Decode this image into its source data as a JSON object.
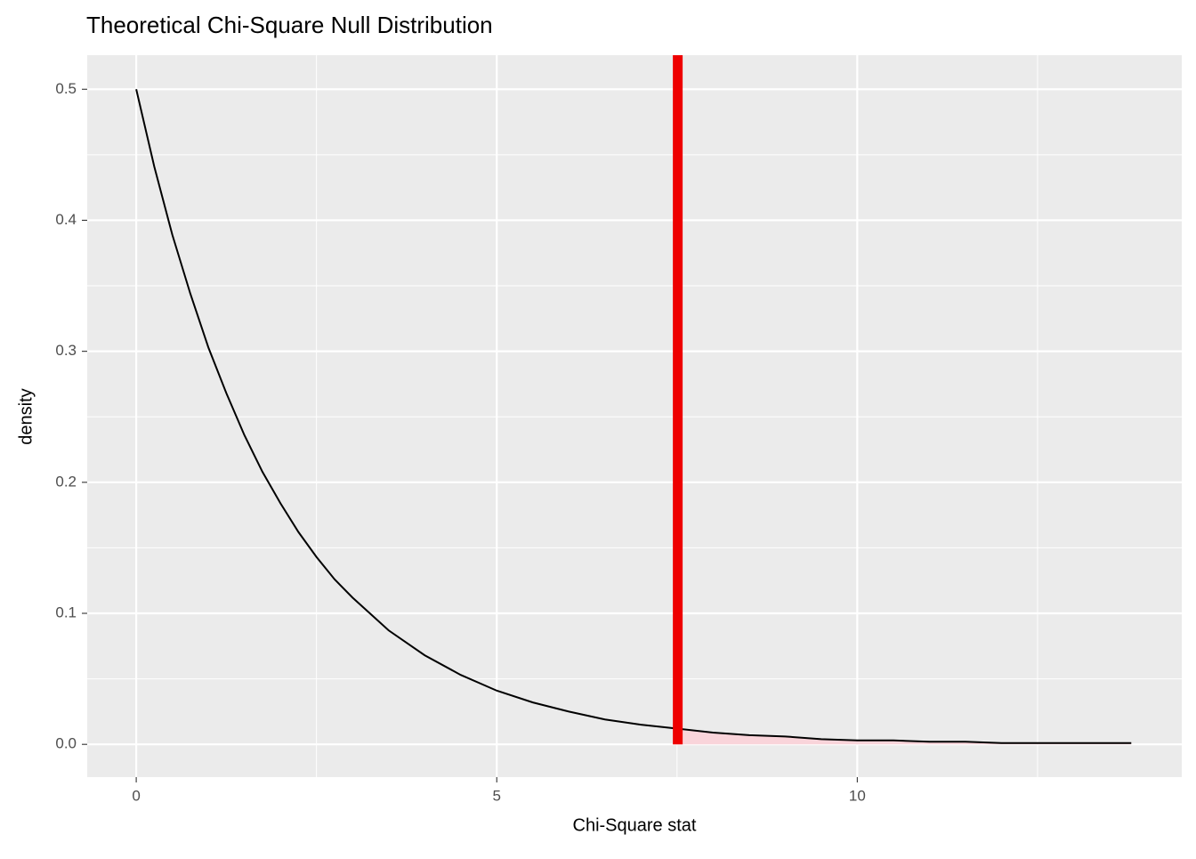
{
  "chart_data": {
    "type": "line",
    "title": "Theoretical Chi-Square Null Distribution",
    "x_label": "Chi-Square stat",
    "y_label": "density",
    "x": [
      0,
      0.25,
      0.5,
      0.75,
      1,
      1.25,
      1.5,
      1.75,
      2,
      2.25,
      2.5,
      2.75,
      3,
      3.5,
      4,
      4.5,
      5,
      5.5,
      6,
      6.5,
      7,
      7.5,
      8,
      8.5,
      9,
      9.5,
      10,
      10.5,
      11,
      11.5,
      12,
      12.5,
      13,
      13.5,
      13.8
    ],
    "series": [
      {
        "color": "#000000",
        "values": [
          0.5,
          0.441,
          0.389,
          0.344,
          0.303,
          0.268,
          0.236,
          0.208,
          0.184,
          0.162,
          0.143,
          0.126,
          0.112,
          0.087,
          0.068,
          0.053,
          0.041,
          0.032,
          0.025,
          0.019,
          0.015,
          0.012,
          0.009,
          0.007,
          0.006,
          0.004,
          0.003,
          0.003,
          0.002,
          0.002,
          0.001,
          0.001,
          0.001,
          0.001,
          0.001
        ]
      }
    ],
    "shaded_area": {
      "color": "#f9d4da",
      "x": [
        7.51,
        8,
        9,
        10,
        11,
        12,
        13,
        13.8
      ],
      "values": [
        0.011,
        0.009,
        0.006,
        0.003,
        0.002,
        0.001,
        0.001,
        0.001
      ]
    },
    "vline": {
      "x": 7.51,
      "color": "#ee0000"
    },
    "xlim": [
      -0.68,
      14.5
    ],
    "ylim": [
      -0.025,
      0.526
    ],
    "xticks": [
      0,
      5,
      10
    ],
    "yticks": [
      {
        "value": 0,
        "label": "0.0"
      },
      0.1,
      0.2,
      0.3,
      0.4,
      0.5
    ],
    "x_minor_breaks": [
      2.5,
      7.5,
      12.5
    ],
    "y_minor_breaks": [
      0.05,
      0.15,
      0.25,
      0.35,
      0.45
    ],
    "grid": true
  }
}
